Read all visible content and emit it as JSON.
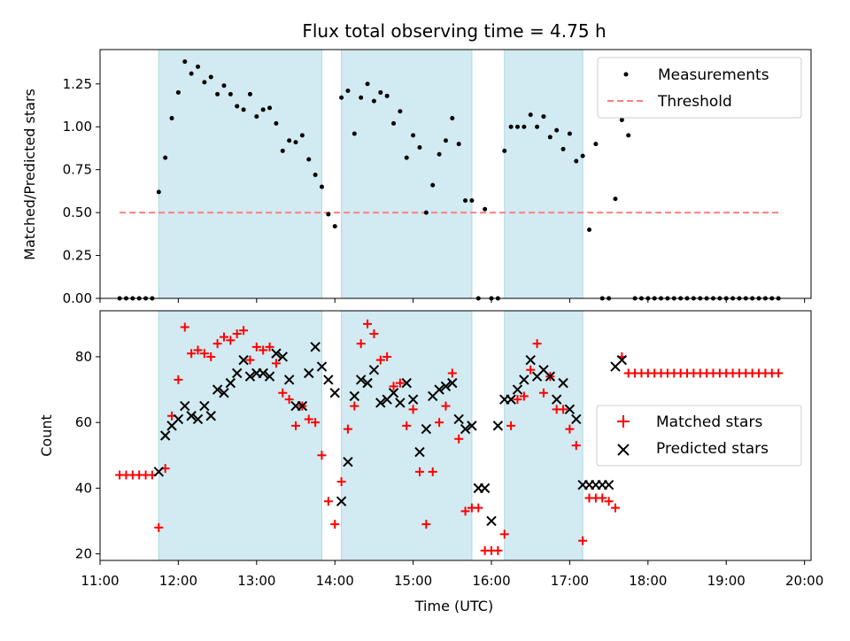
{
  "title": "Flux total observing time = 4.75 h",
  "chart_data": [
    {
      "type": "scatter",
      "panel": "top",
      "ylabel": "Matched/Predicted stars",
      "ylim": [
        0,
        1.45
      ],
      "yticks": [
        0.0,
        0.25,
        0.5,
        0.75,
        1.0,
        1.25
      ],
      "ytick_labels": [
        "0.00",
        "0.25",
        "0.50",
        "0.75",
        "1.00",
        "1.25"
      ],
      "legend_position": "top-right",
      "legend": [
        {
          "label": "Measurements",
          "marker": "dot",
          "color": "#000000"
        },
        {
          "label": "Threshold",
          "marker": "dashed-line",
          "color": "#ff7f7f"
        }
      ],
      "threshold": {
        "y": 0.5,
        "x_start": "11:15",
        "x_end": "19:40",
        "color": "#ff7f7f"
      },
      "shaded_intervals": [
        [
          "11:45",
          "13:50"
        ],
        [
          "14:05",
          "15:45"
        ],
        [
          "16:10",
          "17:10"
        ]
      ],
      "shade_color": "#add8e6",
      "series": [
        {
          "x": [
            "11:15",
            "11:20",
            "11:25",
            "11:30",
            "11:35",
            "11:40",
            "11:45",
            "11:50",
            "11:55",
            "12:00",
            "12:05",
            "12:10",
            "12:15",
            "12:20",
            "12:25",
            "12:30",
            "12:35",
            "12:40",
            "12:45",
            "12:50",
            "12:55",
            "13:00",
            "13:05",
            "13:10",
            "13:15",
            "13:20",
            "13:25",
            "13:30",
            "13:35",
            "13:40",
            "13:45",
            "13:50",
            "13:55",
            "14:00",
            "14:05",
            "14:10",
            "14:15",
            "14:20",
            "14:25",
            "14:30",
            "14:35",
            "14:40",
            "14:45",
            "14:50",
            "14:55",
            "15:00",
            "15:05",
            "15:10",
            "15:15",
            "15:20",
            "15:25",
            "15:30",
            "15:35",
            "15:40",
            "15:45",
            "15:50",
            "15:55",
            "16:00",
            "16:05",
            "16:10",
            "16:15",
            "16:20",
            "16:25",
            "16:30",
            "16:35",
            "16:40",
            "16:45",
            "16:50",
            "16:55",
            "17:00",
            "17:05",
            "17:10",
            "17:15",
            "17:20",
            "17:25",
            "17:30",
            "17:35",
            "17:40",
            "17:45",
            "17:50",
            "17:55",
            "18:00",
            "18:05",
            "18:10",
            "18:15",
            "18:20",
            "18:25",
            "18:30",
            "18:35",
            "18:40",
            "18:45",
            "18:50",
            "18:55",
            "19:00",
            "19:05",
            "19:10",
            "19:15",
            "19:20",
            "19:25",
            "19:30",
            "19:35",
            "19:40"
          ],
          "values": [
            0,
            0,
            0,
            0,
            0,
            0,
            0.62,
            0.82,
            1.05,
            1.2,
            1.38,
            1.31,
            1.35,
            1.26,
            1.29,
            1.19,
            1.24,
            1.19,
            1.12,
            1.1,
            1.19,
            1.06,
            1.1,
            1.11,
            1.02,
            0.86,
            0.92,
            0.91,
            0.95,
            0.81,
            0.72,
            0.65,
            0.49,
            0.42,
            1.17,
            1.21,
            0.96,
            1.17,
            1.25,
            1.15,
            1.2,
            1.18,
            1.02,
            1.09,
            0.82,
            0.95,
            0.88,
            0.5,
            0.66,
            0.84,
            0.92,
            1.05,
            0.9,
            0.57,
            0.57,
            0,
            0.52,
            0,
            0,
            0.86,
            1.0,
            1.0,
            1.0,
            1.07,
            1.0,
            1.06,
            0.94,
            0.98,
            0.87,
            0.96,
            0.8,
            0.83,
            0.4,
            0.9,
            0,
            0,
            0.58,
            1.04,
            0.95,
            0,
            0,
            0,
            0,
            0,
            0,
            0,
            0,
            0,
            0,
            0,
            0,
            0,
            0,
            0,
            0,
            0,
            0,
            0,
            0,
            0,
            0,
            0
          ]
        }
      ]
    },
    {
      "type": "scatter",
      "panel": "bottom",
      "xlabel": "Time (UTC)",
      "ylabel": "Count",
      "xlim": [
        "11:00",
        "20:05"
      ],
      "ylim": [
        18,
        94
      ],
      "xticks": [
        "11:00",
        "12:00",
        "13:00",
        "14:00",
        "15:00",
        "16:00",
        "17:00",
        "18:00",
        "19:00",
        "20:00"
      ],
      "yticks": [
        20,
        40,
        60,
        80
      ],
      "ytick_labels": [
        "20",
        "40",
        "60",
        "80"
      ],
      "legend_position": "center-right",
      "legend": [
        {
          "label": "Matched stars",
          "marker": "plus",
          "color": "#ff0000"
        },
        {
          "label": "Predicted stars",
          "marker": "x",
          "color": "#000000"
        }
      ],
      "shaded_intervals": [
        [
          "11:45",
          "13:50"
        ],
        [
          "14:05",
          "15:45"
        ],
        [
          "16:10",
          "17:10"
        ]
      ],
      "series": [
        {
          "name": "Matched stars",
          "marker": "plus",
          "color": "#ff0000",
          "x": [
            "11:15",
            "11:20",
            "11:25",
            "11:30",
            "11:35",
            "11:40",
            "11:45",
            "11:50",
            "11:55",
            "12:00",
            "12:05",
            "12:10",
            "12:15",
            "12:20",
            "12:25",
            "12:30",
            "12:35",
            "12:40",
            "12:45",
            "12:50",
            "12:55",
            "13:00",
            "13:05",
            "13:10",
            "13:15",
            "13:20",
            "13:25",
            "13:30",
            "13:35",
            "13:40",
            "13:45",
            "13:50",
            "13:55",
            "14:00",
            "14:05",
            "14:10",
            "14:15",
            "14:20",
            "14:25",
            "14:30",
            "14:35",
            "14:40",
            "14:45",
            "14:50",
            "14:55",
            "15:00",
            "15:05",
            "15:10",
            "15:15",
            "15:20",
            "15:25",
            "15:30",
            "15:35",
            "15:40",
            "15:45",
            "15:50",
            "15:55",
            "16:00",
            "16:05",
            "16:10",
            "16:15",
            "16:20",
            "16:25",
            "16:30",
            "16:35",
            "16:40",
            "16:45",
            "16:50",
            "16:55",
            "17:00",
            "17:05",
            "17:10",
            "17:15",
            "17:20",
            "17:25",
            "17:30",
            "17:35",
            "17:40",
            "17:45",
            "17:50",
            "17:55",
            "18:00",
            "18:05",
            "18:10",
            "18:15",
            "18:20",
            "18:25",
            "18:30",
            "18:35",
            "18:40",
            "18:45",
            "18:50",
            "18:55",
            "19:00",
            "19:05",
            "19:10",
            "19:15",
            "19:20",
            "19:25",
            "19:30",
            "19:35",
            "19:40"
          ],
          "values": [
            44,
            44,
            44,
            44,
            44,
            44,
            28,
            46,
            62,
            73,
            89,
            81,
            82,
            81,
            80,
            84,
            86,
            85,
            87,
            88,
            79,
            83,
            82,
            83,
            78,
            69,
            67,
            59,
            65,
            61,
            60,
            50,
            36,
            29,
            42,
            58,
            65,
            84,
            90,
            87,
            79,
            80,
            71,
            72,
            59,
            64,
            45,
            29,
            45,
            60,
            65,
            75,
            55,
            33,
            34,
            34,
            21,
            21,
            21,
            26,
            59,
            67,
            68,
            76,
            84,
            69,
            74,
            64,
            64,
            58,
            53,
            24,
            37,
            37,
            37,
            36,
            34,
            80,
            75,
            75,
            75,
            75,
            75,
            75,
            75,
            75,
            75,
            75,
            75,
            75,
            75,
            75,
            75,
            75,
            75,
            75,
            75,
            75,
            75,
            75,
            75,
            75
          ]
        },
        {
          "name": "Predicted stars",
          "marker": "x",
          "color": "#000000",
          "x": [
            "11:45",
            "11:50",
            "11:55",
            "12:00",
            "12:05",
            "12:10",
            "12:15",
            "12:20",
            "12:25",
            "12:30",
            "12:35",
            "12:40",
            "12:45",
            "12:50",
            "12:55",
            "13:00",
            "13:05",
            "13:10",
            "13:15",
            "13:20",
            "13:25",
            "13:30",
            "13:35",
            "13:40",
            "13:45",
            "13:50",
            "13:55",
            "14:00",
            "14:05",
            "14:10",
            "14:15",
            "14:20",
            "14:25",
            "14:30",
            "14:35",
            "14:40",
            "14:45",
            "14:50",
            "14:55",
            "15:00",
            "15:05",
            "15:10",
            "15:15",
            "15:20",
            "15:25",
            "15:30",
            "15:35",
            "15:40",
            "15:45",
            "15:50",
            "15:55",
            "16:00",
            "16:05",
            "16:10",
            "16:15",
            "16:20",
            "16:25",
            "16:30",
            "16:35",
            "16:40",
            "16:45",
            "16:50",
            "16:55",
            "17:00",
            "17:05",
            "17:10",
            "17:15",
            "17:20",
            "17:25",
            "17:30",
            "17:35",
            "17:40"
          ],
          "values": [
            45,
            56,
            59,
            61,
            65,
            62,
            61,
            65,
            62,
            70,
            69,
            72,
            75,
            79,
            74,
            75,
            75,
            74,
            81,
            80,
            73,
            65,
            65,
            75,
            83,
            77,
            73,
            69,
            36,
            48,
            68,
            73,
            72,
            76,
            66,
            67,
            69,
            66,
            72,
            67,
            51,
            58,
            68,
            70,
            71,
            72,
            61,
            58,
            59,
            40,
            40,
            30,
            59,
            67,
            67,
            70,
            73,
            79,
            74,
            76,
            74,
            67,
            72,
            64,
            61,
            41,
            41,
            41,
            41,
            41,
            77,
            79
          ]
        }
      ]
    }
  ]
}
